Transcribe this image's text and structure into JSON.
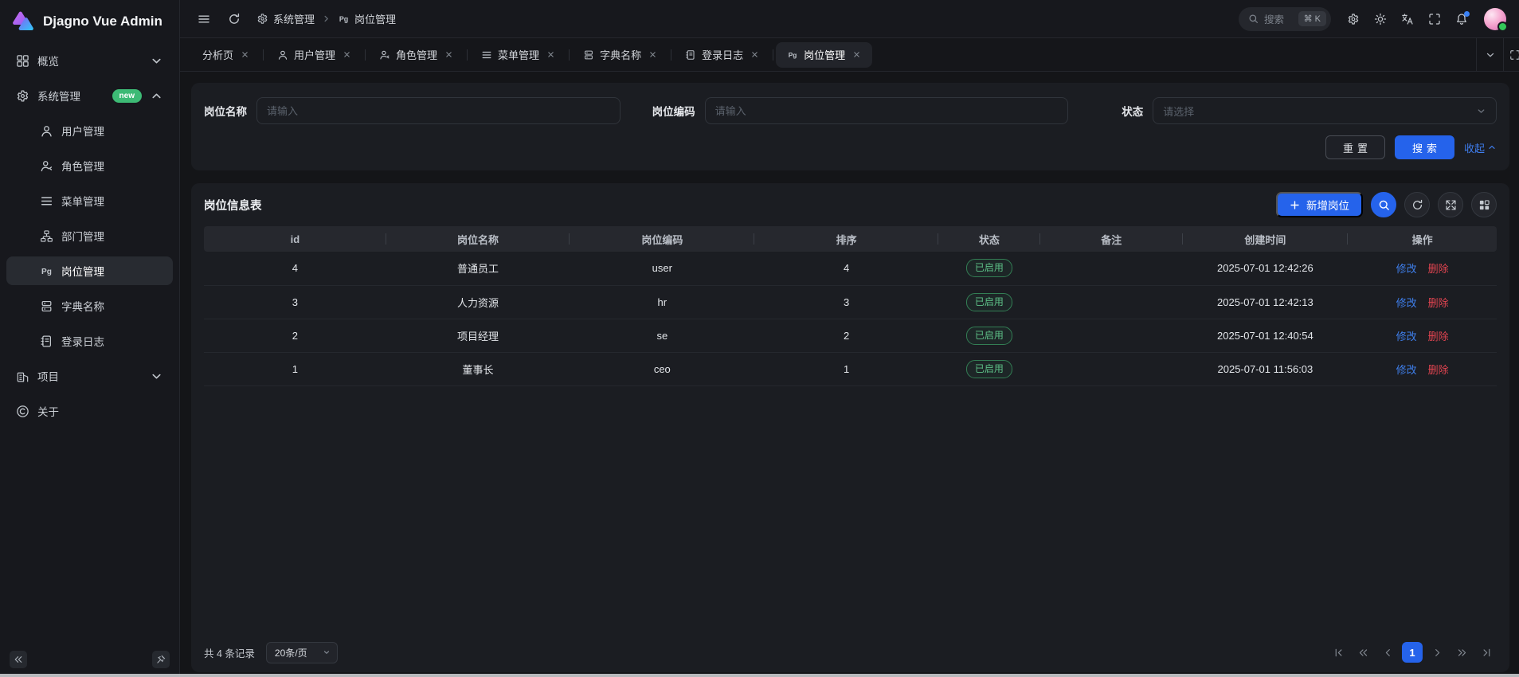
{
  "app": {
    "title": "Djagno Vue Admin"
  },
  "header": {
    "breadcrumb": [
      {
        "icon": "gear",
        "label": "系统管理"
      },
      {
        "icon": "pg",
        "label": "岗位管理"
      }
    ],
    "search": {
      "placeholder": "搜索",
      "shortcut": "⌘ K"
    },
    "tool_icons": [
      "settings",
      "theme-light",
      "translate",
      "fullscreen",
      "notifications",
      "avatar"
    ]
  },
  "sidebar": {
    "items": [
      {
        "key": "overview",
        "label": "概览",
        "icon": "grid",
        "chevron": "down",
        "level": 0
      },
      {
        "key": "system",
        "label": "系统管理",
        "icon": "gear",
        "badge": "new",
        "chevron": "up",
        "level": 0
      },
      {
        "key": "users",
        "label": "用户管理",
        "icon": "user",
        "level": 1
      },
      {
        "key": "roles",
        "label": "角色管理",
        "icon": "role",
        "level": 1
      },
      {
        "key": "menus",
        "label": "菜单管理",
        "icon": "list",
        "level": 1
      },
      {
        "key": "departments",
        "label": "部门管理",
        "icon": "dept",
        "level": 1
      },
      {
        "key": "posts",
        "label": "岗位管理",
        "icon": "pg",
        "level": 1,
        "active": true
      },
      {
        "key": "dictionaries",
        "label": "字典名称",
        "icon": "dict",
        "level": 1
      },
      {
        "key": "login-logs",
        "label": "登录日志",
        "icon": "log",
        "level": 1
      },
      {
        "key": "project",
        "label": "项目",
        "icon": "building",
        "chevron": "down",
        "level": 0
      },
      {
        "key": "about",
        "label": "关于",
        "icon": "about",
        "level": 0
      }
    ]
  },
  "tabs": {
    "items": [
      {
        "key": "analysis",
        "label": "分析页"
      },
      {
        "key": "users",
        "label": "用户管理",
        "icon": "user"
      },
      {
        "key": "roles",
        "label": "角色管理",
        "icon": "role"
      },
      {
        "key": "menus",
        "label": "菜单管理",
        "icon": "list"
      },
      {
        "key": "dictionaries",
        "label": "字典名称",
        "icon": "dict"
      },
      {
        "key": "login-logs",
        "label": "登录日志",
        "icon": "log"
      },
      {
        "key": "posts",
        "label": "岗位管理",
        "icon": "pg",
        "active": true
      }
    ]
  },
  "search_form": {
    "fields": [
      {
        "label": "岗位名称",
        "placeholder": "请输入",
        "type": "input"
      },
      {
        "label": "岗位编码",
        "placeholder": "请输入",
        "type": "input"
      },
      {
        "label": "状态",
        "placeholder": "请选择",
        "type": "select"
      }
    ],
    "reset_label": "重置",
    "search_label": "搜索",
    "collapse_label": "收起"
  },
  "table": {
    "title": "岗位信息表",
    "add_label": "新增岗位",
    "columns": [
      "id",
      "岗位名称",
      "岗位编码",
      "排序",
      "状态",
      "备注",
      "创建时间",
      "操作"
    ],
    "action_edit": "修改",
    "action_delete": "删除",
    "rows": [
      {
        "id": "4",
        "name": "普通员工",
        "code": "user",
        "sort": "4",
        "status": "已启用",
        "remark": "",
        "created": "2025-07-01 12:42:26"
      },
      {
        "id": "3",
        "name": "人力资源",
        "code": "hr",
        "sort": "3",
        "status": "已启用",
        "remark": "",
        "created": "2025-07-01 12:42:13"
      },
      {
        "id": "2",
        "name": "项目经理",
        "code": "se",
        "sort": "2",
        "status": "已启用",
        "remark": "",
        "created": "2025-07-01 12:40:54"
      },
      {
        "id": "1",
        "name": "董事长",
        "code": "ceo",
        "sort": "1",
        "status": "已启用",
        "remark": "",
        "created": "2025-07-01 11:56:03"
      }
    ]
  },
  "pagination": {
    "total_text": "共 4 条记录",
    "page_size": "20条/页",
    "current_page": "1"
  },
  "colors": {
    "accent": "#2563eb",
    "green": "#3dba75",
    "red": "#e04450",
    "link_blue": "#3e7eea",
    "status_green": "#5ec188"
  }
}
